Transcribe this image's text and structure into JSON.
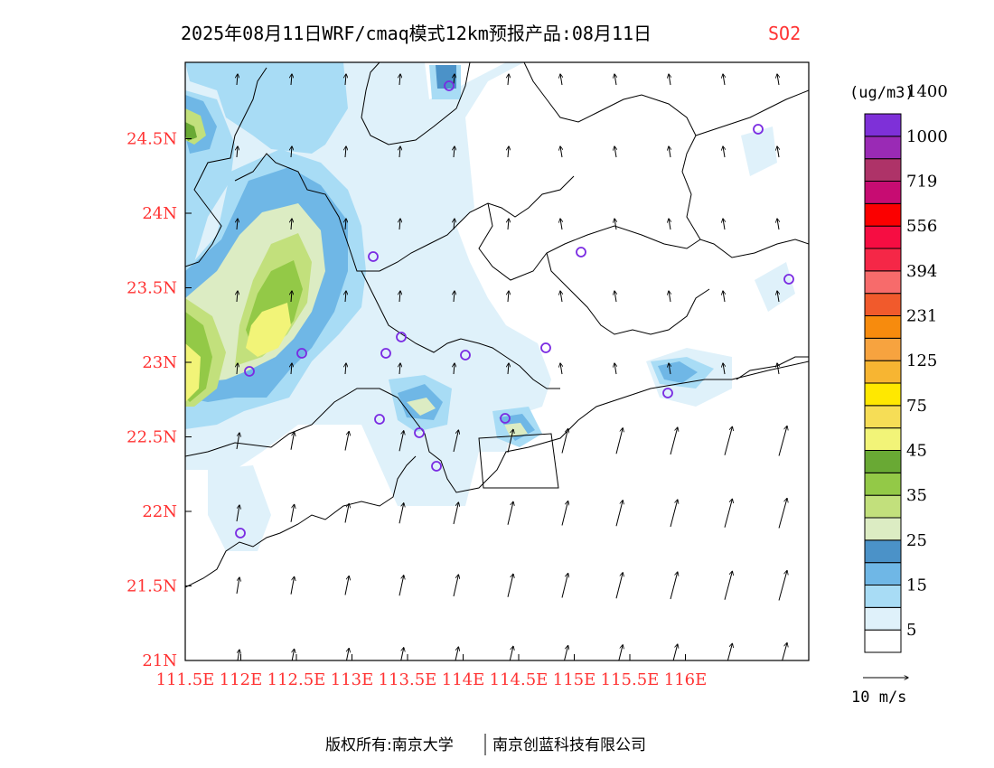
{
  "title": {
    "main": "2025年08月11日WRF/cmaq模式12km预报产品:08月11日",
    "species": "SO2"
  },
  "colors": {
    "title": "#000000",
    "species": "#ff3333",
    "axis_labels": "#ff3333",
    "coast": "#000000",
    "station": "#7a2be2"
  },
  "axes": {
    "lon_labels": [
      "111.5E",
      "112E",
      "112.5E",
      "113E",
      "113.5E",
      "114E",
      "114.5E",
      "115E",
      "115.5E",
      "116E"
    ],
    "lat_labels": [
      "21N",
      "21.5N",
      "22N",
      "22.5N",
      "23N",
      "23.5N",
      "24N",
      "24.5N"
    ]
  },
  "legend": {
    "unit": "(ug/m3)",
    "labels": [
      "5",
      "15",
      "25",
      "35",
      "45",
      "75",
      "125",
      "231",
      "394",
      "556",
      "719",
      "1000",
      "1400"
    ],
    "colors": [
      "#ffffff",
      "#dff1fa",
      "#a8dcf5",
      "#6fb7e6",
      "#4b92c8",
      "#dcecc3",
      "#c2e07c",
      "#93c947",
      "#69a934",
      "#f2f478",
      "#f6dd56",
      "#ffe800",
      "#f7b532",
      "#f7a33f",
      "#f78b0d",
      "#f15a2c",
      "#f76b6b",
      "#f52747",
      "#f60d42",
      "#fb0000",
      "#c70c72",
      "#ae3368",
      "#9a2ab5",
      "#7e30d8"
    ]
  },
  "wind_scale": {
    "label": "10 m/s"
  },
  "footer": {
    "copyright": "版权所有:南京大学",
    "company": "南京创蓝科技有限公司"
  }
}
